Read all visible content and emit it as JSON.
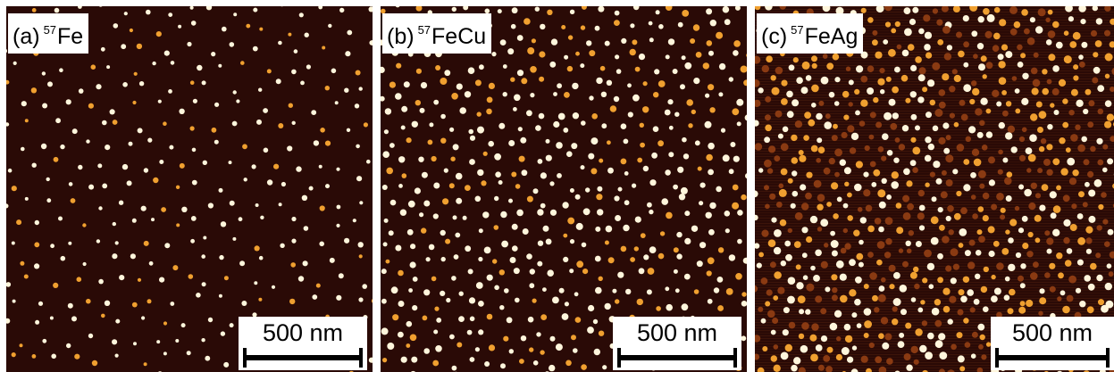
{
  "panels": [
    {
      "id": "a",
      "letter": "(a)",
      "isotope": "57",
      "material": "Fe",
      "scale_bar": "500 nm"
    },
    {
      "id": "b",
      "letter": "(b)",
      "isotope": "57",
      "material": "FeCu",
      "scale_bar": "500 nm"
    },
    {
      "id": "c",
      "letter": "(c)",
      "isotope": "57",
      "material": "FeAg",
      "scale_bar": "500 nm"
    }
  ],
  "colors": {
    "background_dark": "#2a0a06",
    "particle_bright": "#fff6dc",
    "particle_mid": "#f0a030",
    "particle_dim": "#8a3a12"
  }
}
